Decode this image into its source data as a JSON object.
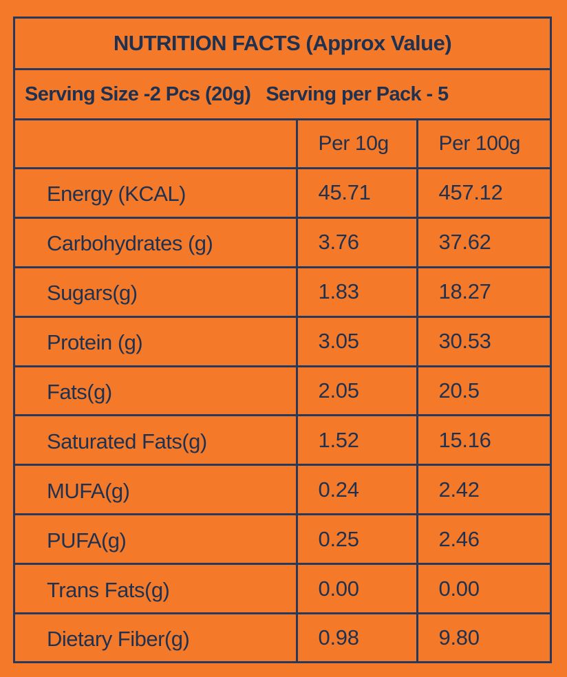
{
  "title": "NUTRITION FACTS (Approx Value)",
  "serving": {
    "size": "Serving Size -2 Pcs (20g)",
    "per_pack": "Serving per Pack - 5"
  },
  "columns": {
    "per_10g": "Per 10g",
    "per_100g": "Per 100g"
  },
  "rows": [
    {
      "label": "Energy (KCAL)",
      "per_10g": "45.71",
      "per_100g": "457.12"
    },
    {
      "label": "Carbohydrates (g)",
      "per_10g": "3.76",
      "per_100g": "37.62"
    },
    {
      "label": "Sugars(g)",
      "per_10g": "1.83",
      "per_100g": "18.27"
    },
    {
      "label": "Protein (g)",
      "per_10g": "3.05",
      "per_100g": "30.53"
    },
    {
      "label": "Fats(g)",
      "per_10g": "2.05",
      "per_100g": "20.5"
    },
    {
      "label": "Saturated Fats(g)",
      "per_10g": "1.52",
      "per_100g": "15.16"
    },
    {
      "label": "MUFA(g)",
      "per_10g": "0.24",
      "per_100g": "2.42"
    },
    {
      "label": "PUFA(g)",
      "per_10g": "0.25",
      "per_100g": "2.46"
    },
    {
      "label": "Trans Fats(g)",
      "per_10g": "0.00",
      "per_100g": "0.00"
    },
    {
      "label": "Dietary Fiber(g)",
      "per_10g": "0.98",
      "per_100g": "9.80"
    }
  ],
  "colors": {
    "background": "#f47a2a",
    "text": "#1f3150",
    "border": "#26395a"
  }
}
